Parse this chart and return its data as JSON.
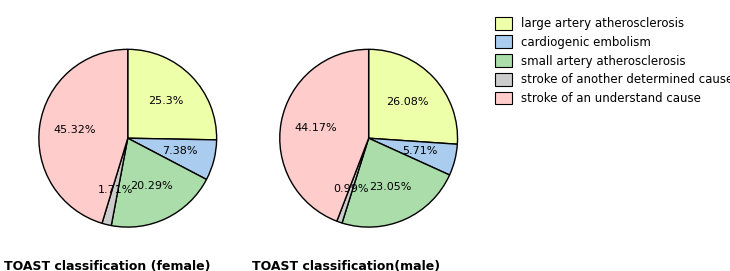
{
  "female_values": [
    25.3,
    7.38,
    20.29,
    1.71,
    45.32
  ],
  "male_values": [
    26.08,
    5.71,
    23.05,
    0.99,
    44.17
  ],
  "female_labels": [
    "25.3%",
    "7.38%",
    "20.29%",
    "1.71%",
    "45.32%"
  ],
  "male_labels": [
    "26.08%",
    "5.71%",
    "23.05%",
    "0.99%",
    "44.17%"
  ],
  "colors": [
    "#eeffaa",
    "#aaccee",
    "#aaddaa",
    "#cccccc",
    "#ffcccc"
  ],
  "legend_labels": [
    "large artery atherosclerosis",
    "cardiogenic embolism",
    "small artery atherosclerosis",
    "stroke of another determined cause",
    "stroke of an understand cause"
  ],
  "title_female": "TOAST classification (female)",
  "title_male": "TOAST classification(male)",
  "title_fontsize": 9,
  "label_fontsize": 8,
  "legend_fontsize": 8.5
}
